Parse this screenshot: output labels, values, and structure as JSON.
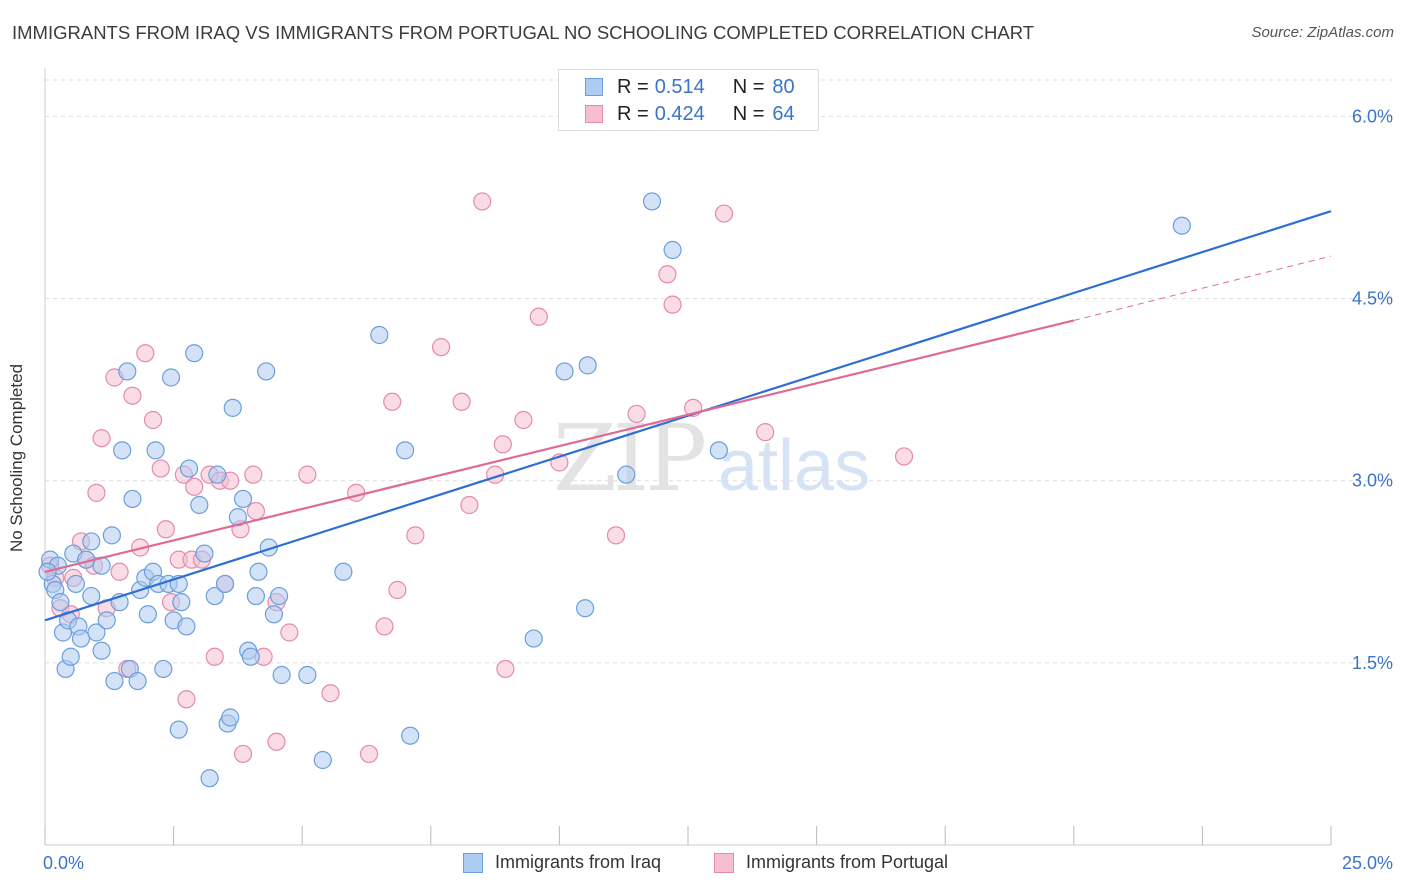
{
  "header": {
    "title": "IMMIGRANTS FROM IRAQ VS IMMIGRANTS FROM PORTUGAL NO SCHOOLING COMPLETED CORRELATION CHART",
    "source": "Source: ZipAtlas.com"
  },
  "watermark": {
    "part1": "ZIP",
    "part2": "atlas"
  },
  "legend": {
    "series1": {
      "r_label": "R =",
      "r_value": "0.514",
      "n_label": "N =",
      "n_value": "80"
    },
    "series2": {
      "r_label": "R =",
      "r_value": "0.424",
      "n_label": "N =",
      "n_value": "64"
    }
  },
  "colors": {
    "blue_fill": "#aecbf0",
    "blue_stroke": "#6a9fdc",
    "blue_line": "#2f6fd1",
    "pink_fill": "#f5bfd1",
    "pink_stroke": "#e58aab",
    "pink_line": "#e06a96",
    "value_text": "#3a74c9",
    "grid": "#dddddd"
  },
  "chart_data": {
    "type": "scatter",
    "title": "IMMIGRANTS FROM IRAQ VS IMMIGRANTS FROM PORTUGAL NO SCHOOLING COMPLETED CORRELATION CHART",
    "ylabel": "No Schooling Completed",
    "xlabel": "",
    "xlim": [
      0,
      25
    ],
    "ylim": [
      0,
      6.3
    ],
    "x_tick_labels": [
      "0.0%",
      "25.0%"
    ],
    "y_ticks": [
      1.5,
      3.0,
      4.5,
      6.0
    ],
    "y_tick_labels": [
      "1.5%",
      "3.0%",
      "4.5%",
      "6.0%"
    ],
    "grid": true,
    "legend_position": "top-center",
    "series": [
      {
        "name": "Immigrants from Iraq",
        "color": "#6a9fdc",
        "trend": {
          "x": [
            0,
            25
          ],
          "y": [
            1.85,
            5.22
          ]
        },
        "points": [
          [
            0.1,
            2.35
          ],
          [
            0.15,
            2.15
          ],
          [
            0.2,
            2.1
          ],
          [
            0.25,
            2.3
          ],
          [
            0.3,
            2.0
          ],
          [
            0.35,
            1.75
          ],
          [
            0.4,
            1.45
          ],
          [
            0.45,
            1.85
          ],
          [
            0.5,
            1.55
          ],
          [
            0.55,
            2.4
          ],
          [
            0.6,
            2.15
          ],
          [
            0.65,
            1.8
          ],
          [
            0.7,
            1.7
          ],
          [
            0.8,
            2.35
          ],
          [
            0.9,
            2.05
          ],
          [
            0.9,
            2.5
          ],
          [
            1.0,
            1.75
          ],
          [
            1.1,
            1.6
          ],
          [
            1.1,
            2.3
          ],
          [
            1.2,
            1.85
          ],
          [
            1.3,
            2.55
          ],
          [
            1.35,
            1.35
          ],
          [
            1.45,
            2.0
          ],
          [
            1.5,
            3.25
          ],
          [
            1.6,
            3.9
          ],
          [
            1.65,
            1.45
          ],
          [
            1.7,
            2.85
          ],
          [
            1.8,
            1.35
          ],
          [
            1.85,
            2.1
          ],
          [
            1.95,
            2.2
          ],
          [
            2.0,
            1.9
          ],
          [
            2.1,
            2.25
          ],
          [
            2.15,
            3.25
          ],
          [
            2.2,
            2.15
          ],
          [
            2.3,
            1.45
          ],
          [
            2.4,
            2.15
          ],
          [
            2.45,
            3.85
          ],
          [
            2.5,
            1.85
          ],
          [
            2.6,
            2.15
          ],
          [
            2.6,
            0.95
          ],
          [
            2.65,
            2.0
          ],
          [
            2.75,
            1.8
          ],
          [
            2.8,
            3.1
          ],
          [
            2.9,
            4.05
          ],
          [
            3.0,
            2.8
          ],
          [
            3.1,
            2.4
          ],
          [
            3.2,
            0.55
          ],
          [
            3.3,
            2.05
          ],
          [
            3.35,
            3.05
          ],
          [
            3.5,
            2.15
          ],
          [
            3.55,
            1.0
          ],
          [
            3.6,
            1.05
          ],
          [
            3.65,
            3.6
          ],
          [
            3.75,
            2.7
          ],
          [
            3.85,
            2.85
          ],
          [
            3.95,
            1.6
          ],
          [
            4.0,
            1.55
          ],
          [
            4.1,
            2.05
          ],
          [
            4.15,
            2.25
          ],
          [
            4.3,
            3.9
          ],
          [
            4.35,
            2.45
          ],
          [
            4.45,
            1.9
          ],
          [
            4.55,
            2.05
          ],
          [
            4.6,
            1.4
          ],
          [
            5.1,
            1.4
          ],
          [
            5.4,
            0.7
          ],
          [
            5.8,
            2.25
          ],
          [
            6.5,
            4.2
          ],
          [
            7.0,
            3.25
          ],
          [
            7.1,
            0.9
          ],
          [
            9.5,
            1.7
          ],
          [
            10.1,
            3.9
          ],
          [
            10.5,
            1.95
          ],
          [
            10.55,
            3.95
          ],
          [
            11.3,
            3.05
          ],
          [
            11.8,
            5.3
          ],
          [
            12.2,
            4.9
          ],
          [
            13.1,
            3.25
          ],
          [
            22.1,
            5.1
          ],
          [
            0.05,
            2.25
          ]
        ]
      },
      {
        "name": "Immigrants from Portugal",
        "color": "#e58aab",
        "trend": {
          "x": [
            0,
            20
          ],
          "y": [
            2.25,
            4.32
          ]
        },
        "trend_dashed": {
          "x": [
            20,
            25
          ],
          "y": [
            4.32,
            4.85
          ]
        },
        "points": [
          [
            0.1,
            2.3
          ],
          [
            0.2,
            2.2
          ],
          [
            0.3,
            1.95
          ],
          [
            0.5,
            1.9
          ],
          [
            0.55,
            2.2
          ],
          [
            0.7,
            2.5
          ],
          [
            0.8,
            2.35
          ],
          [
            0.95,
            2.3
          ],
          [
            1.0,
            2.9
          ],
          [
            1.1,
            3.35
          ],
          [
            1.2,
            1.95
          ],
          [
            1.35,
            3.85
          ],
          [
            1.45,
            2.25
          ],
          [
            1.6,
            1.45
          ],
          [
            1.7,
            3.7
          ],
          [
            1.85,
            2.45
          ],
          [
            1.95,
            4.05
          ],
          [
            2.1,
            3.5
          ],
          [
            2.25,
            3.1
          ],
          [
            2.35,
            2.6
          ],
          [
            2.45,
            2.0
          ],
          [
            2.6,
            2.35
          ],
          [
            2.7,
            3.05
          ],
          [
            2.75,
            1.2
          ],
          [
            2.85,
            2.35
          ],
          [
            2.9,
            2.95
          ],
          [
            3.05,
            2.35
          ],
          [
            3.2,
            3.05
          ],
          [
            3.3,
            1.55
          ],
          [
            3.4,
            3.0
          ],
          [
            3.5,
            2.15
          ],
          [
            3.6,
            3.0
          ],
          [
            3.8,
            2.6
          ],
          [
            3.85,
            0.75
          ],
          [
            4.05,
            3.05
          ],
          [
            4.1,
            2.75
          ],
          [
            4.25,
            1.55
          ],
          [
            4.5,
            2.0
          ],
          [
            4.5,
            0.85
          ],
          [
            4.75,
            1.75
          ],
          [
            5.1,
            3.05
          ],
          [
            5.55,
            1.25
          ],
          [
            6.05,
            2.9
          ],
          [
            6.3,
            0.75
          ],
          [
            6.6,
            1.8
          ],
          [
            6.75,
            3.65
          ],
          [
            6.85,
            2.1
          ],
          [
            7.2,
            2.55
          ],
          [
            7.7,
            4.1
          ],
          [
            8.1,
            3.65
          ],
          [
            8.25,
            2.8
          ],
          [
            8.5,
            5.3
          ],
          [
            8.75,
            3.05
          ],
          [
            8.9,
            3.3
          ],
          [
            8.95,
            1.45
          ],
          [
            9.3,
            3.5
          ],
          [
            9.6,
            4.35
          ],
          [
            10.0,
            3.15
          ],
          [
            11.1,
            2.55
          ],
          [
            11.5,
            3.55
          ],
          [
            12.1,
            4.7
          ],
          [
            12.2,
            4.45
          ],
          [
            12.6,
            3.6
          ],
          [
            13.2,
            5.2
          ]
        ]
      }
    ],
    "extra_points_portugal": [
      [
        14.0,
        3.4
      ],
      [
        16.7,
        3.2
      ]
    ]
  },
  "bottom_legend": {
    "item1": "Immigrants from Iraq",
    "item2": "Immigrants from Portugal"
  }
}
